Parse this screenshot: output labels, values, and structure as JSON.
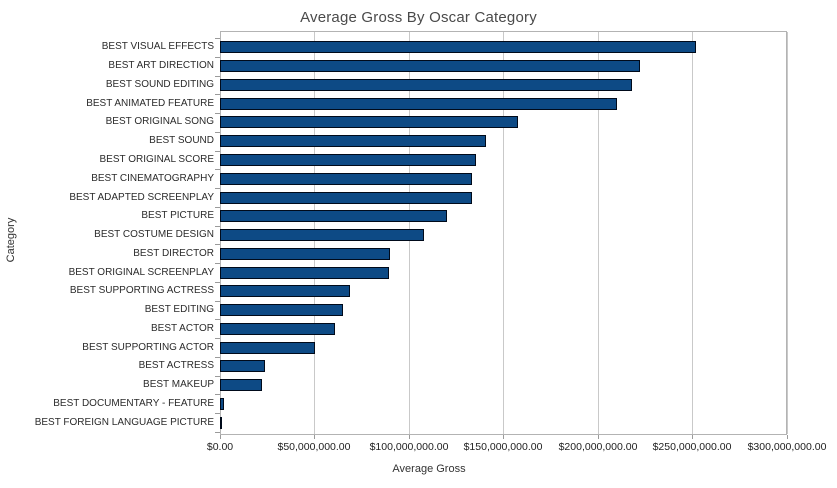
{
  "chart_data": {
    "type": "bar",
    "orientation": "horizontal",
    "title": "Average Gross By Oscar Category",
    "xlabel": "Average Gross",
    "ylabel": "Category",
    "legend": "none",
    "grid": "vertical gridlines on",
    "categories": [
      "BEST VISUAL EFFECTS",
      "BEST ART DIRECTION",
      "BEST SOUND EDITING",
      "BEST ANIMATED FEATURE",
      "BEST ORIGINAL SONG",
      "BEST SOUND",
      "BEST ORIGINAL SCORE",
      "BEST CINEMATOGRAPHY",
      "BEST ADAPTED SCREENPLAY",
      "BEST PICTURE",
      "BEST COSTUME DESIGN",
      "BEST DIRECTOR",
      "BEST ORIGINAL SCREENPLAY",
      "BEST SUPPORTING ACTRESS",
      "BEST EDITING",
      "BEST ACTOR",
      "BEST SUPPORTING ACTOR",
      "BEST ACTRESS",
      "BEST MAKEUP",
      "BEST DOCUMENTARY - FEATURE",
      "BEST FOREIGN LANGUAGE PICTURE"
    ],
    "values": [
      252000000,
      222500000,
      218000000,
      210000000,
      157500000,
      141000000,
      135500000,
      133500000,
      133500000,
      120000000,
      108000000,
      90000000,
      89500000,
      69000000,
      65000000,
      61000000,
      50500000,
      24000000,
      22000000,
      2300000,
      400000
    ],
    "x_tick_labels": [
      "$0.00",
      "$50,000,000.00",
      "$100,000,000.00",
      "$150,000,000.00",
      "$200,000,000.00",
      "$250,000,000.00",
      "$300,000,000.00"
    ],
    "x_tick_values": [
      0,
      50000000,
      100000000,
      150000000,
      200000000,
      250000000,
      300000000
    ],
    "xlim": [
      0,
      300000000
    ],
    "bar_color": "#0d4a85",
    "bar_border_color": "#000a1a",
    "gridline_color": "#c9c9c9"
  }
}
